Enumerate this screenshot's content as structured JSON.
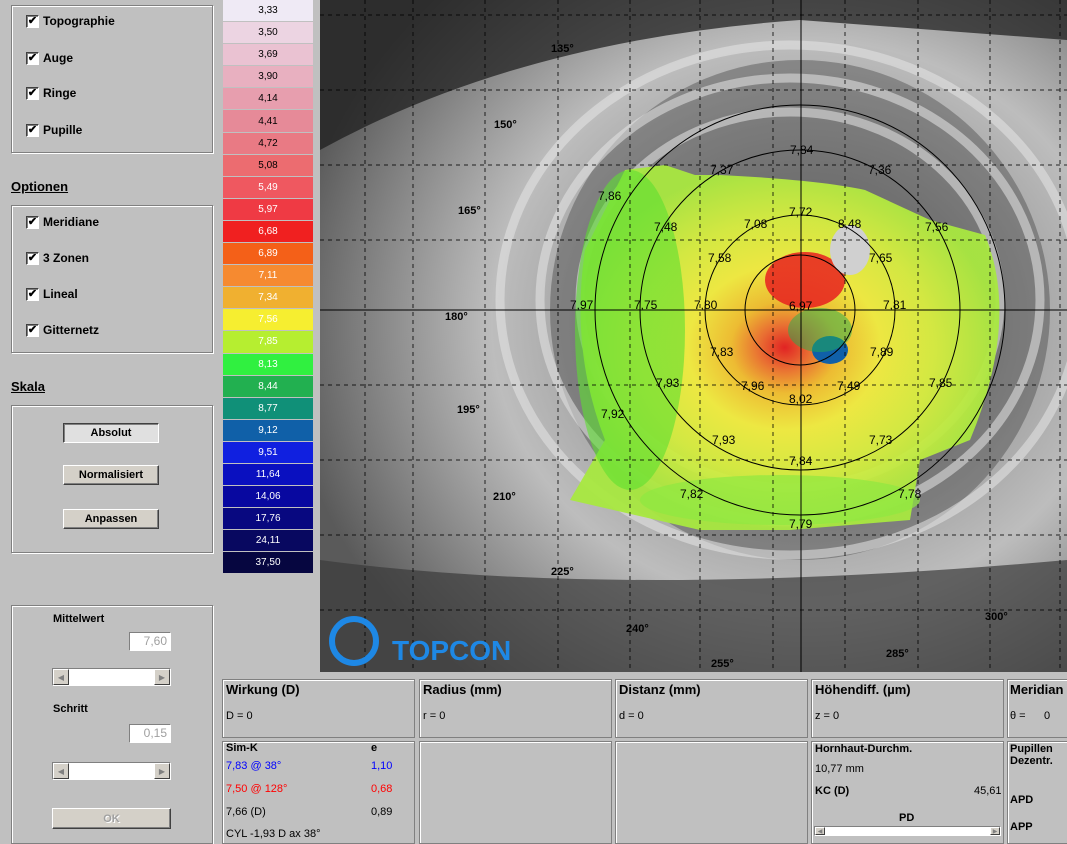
{
  "display": {
    "title": "",
    "items": [
      {
        "label": "Topographie",
        "checked": true
      },
      {
        "label": "Auge",
        "checked": true
      },
      {
        "label": "Ringe",
        "checked": true
      },
      {
        "label": "Pupille",
        "checked": true
      }
    ]
  },
  "optionen": {
    "title": "Optionen",
    "items": [
      {
        "label": "Meridiane",
        "checked": true
      },
      {
        "label": "3 Zonen",
        "checked": true
      },
      {
        "label": "Lineal",
        "checked": true
      },
      {
        "label": "Gitternetz",
        "checked": true
      }
    ]
  },
  "skala": {
    "title": "Skala",
    "buttons": {
      "absolut": "Absolut",
      "normalisiert": "Normalisiert",
      "anpassen": "Anpassen"
    }
  },
  "controls": {
    "mittelwert_label": "Mittelwert",
    "mittelwert_value": "7,60",
    "schritt_label": "Schritt",
    "schritt_value": "0,15",
    "ok_label": "OK"
  },
  "color_scale": [
    {
      "value": "3,33",
      "color": "#efeaf5",
      "text": "#000"
    },
    {
      "value": "3,50",
      "color": "#ecd4e2",
      "text": "#000"
    },
    {
      "value": "3,69",
      "color": "#eac2d2",
      "text": "#000"
    },
    {
      "value": "3,90",
      "color": "#e8b0c0",
      "text": "#000"
    },
    {
      "value": "4,14",
      "color": "#e79eae",
      "text": "#000"
    },
    {
      "value": "4,41",
      "color": "#e68a98",
      "text": "#000"
    },
    {
      "value": "4,72",
      "color": "#e97a84",
      "text": "#000"
    },
    {
      "value": "5,08",
      "color": "#ec6c70",
      "text": "#000"
    },
    {
      "value": "5,49",
      "color": "#ef5860",
      "text": "#fff"
    },
    {
      "value": "5,97",
      "color": "#ef3a44",
      "text": "#fff"
    },
    {
      "value": "6,68",
      "color": "#f02020",
      "text": "#fff"
    },
    {
      "value": "6,89",
      "color": "#f46018",
      "text": "#fff"
    },
    {
      "value": "7,11",
      "color": "#f68a30",
      "text": "#fff"
    },
    {
      "value": "7,34",
      "color": "#f0b030",
      "text": "#fff"
    },
    {
      "value": "7,56",
      "color": "#f6ee30",
      "text": "#fff"
    },
    {
      "value": "7,85",
      "color": "#b6ee30",
      "text": "#fff"
    },
    {
      "value": "8,13",
      "color": "#30f040",
      "text": "#fff"
    },
    {
      "value": "8,44",
      "color": "#22b050",
      "text": "#fff"
    },
    {
      "value": "8,77",
      "color": "#109078",
      "text": "#fff"
    },
    {
      "value": "9,12",
      "color": "#1060a8",
      "text": "#fff"
    },
    {
      "value": "9,51",
      "color": "#1020e0",
      "text": "#fff"
    },
    {
      "value": "11,64",
      "color": "#0a10c0",
      "text": "#fff"
    },
    {
      "value": "14,06",
      "color": "#0808a0",
      "text": "#fff"
    },
    {
      "value": "17,76",
      "color": "#080880",
      "text": "#fff"
    },
    {
      "value": "24,11",
      "color": "#080860",
      "text": "#fff"
    },
    {
      "value": "37,50",
      "color": "#060640",
      "text": "#fff"
    }
  ],
  "map": {
    "brand": "TOPCON",
    "angles": [
      "135°",
      "150°",
      "165°",
      "180°",
      "195°",
      "210°",
      "225°",
      "240°",
      "255°",
      "285°",
      "300°"
    ],
    "values": [
      "7,84",
      "7,37",
      "7,36",
      "7,86",
      "7,72",
      "7,48",
      "7,08",
      "8,48",
      "7,56",
      "7,58",
      "7,65",
      "7,97",
      "7,75",
      "7,80",
      "6,97",
      "7,81",
      "7,83",
      "7,89",
      "7,93",
      "7,96",
      "7,49",
      "7,85",
      "8,02",
      "7,92",
      "7,93",
      "7,73",
      "7,84",
      "7,82",
      "7,78",
      "7,79"
    ]
  },
  "panels": {
    "wirkung": {
      "title": "Wirkung (D)",
      "value": "D = 0"
    },
    "radius": {
      "title": "Radius (mm)",
      "value": "r = 0"
    },
    "distanz": {
      "title": "Distanz (mm)",
      "value": "d = 0"
    },
    "hoehe": {
      "title": "Höhendiff. (µm)",
      "value": "z = 0"
    },
    "meridian": {
      "title": "Meridian",
      "value_sym": "θ =",
      "value": "0"
    }
  },
  "simk": {
    "title": "Sim-K",
    "e_title": "e",
    "rows": [
      {
        "k": "7,83  @ 38°",
        "e": "1,10",
        "color": "#0000ff"
      },
      {
        "k": "7,50  @ 128°",
        "e": "0,68",
        "color": "#ff0000"
      },
      {
        "k": "7,66 (D)",
        "e": "0,89",
        "color": "#000000"
      }
    ],
    "cyl": "CYL -1,93 D   ax 38°"
  },
  "cornea": {
    "title": "Hornhaut-Durchm.",
    "value": "10,77 mm",
    "kc_label": "KC (D)",
    "kc_value": "45,61",
    "pd_label": "PD"
  },
  "pupil": {
    "title": "Pupillen Dezentr.",
    "apd": "APD",
    "app": "APP"
  }
}
